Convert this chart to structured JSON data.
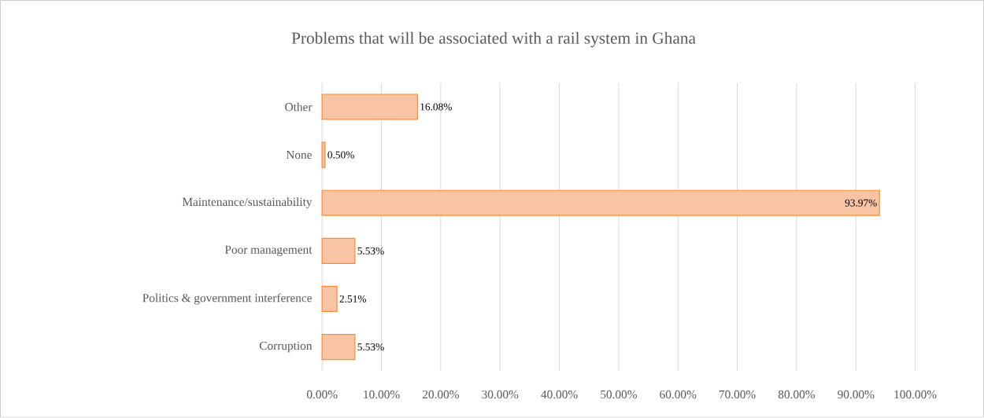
{
  "chart_data": {
    "type": "bar",
    "orientation": "horizontal",
    "title": "Problems that will be associated with a rail system in Ghana",
    "categories": [
      "Other",
      "None",
      "Maintenance/sustainability",
      "Poor management",
      "Politics & government interference",
      "Corruption"
    ],
    "values": [
      16.08,
      0.5,
      93.97,
      5.53,
      2.51,
      5.53
    ],
    "value_labels": [
      "16.08%",
      "0.50%",
      "93.97%",
      "5.53%",
      "2.51%",
      "5.53%"
    ],
    "color": "#f8c4a4",
    "xlim": [
      0,
      100
    ],
    "xticks": [
      {
        "value": 0,
        "label": "0.00%"
      },
      {
        "value": 10,
        "label": "10.00%"
      },
      {
        "value": 20,
        "label": "20.00%"
      },
      {
        "value": 30,
        "label": "30.00%"
      },
      {
        "value": 40,
        "label": "40.00%"
      },
      {
        "value": 50,
        "label": "50.00%"
      },
      {
        "value": 60,
        "label": "60.00%"
      },
      {
        "value": 70,
        "label": "70.00%"
      },
      {
        "value": 80,
        "label": "80.00%"
      },
      {
        "value": 90,
        "label": "90.00%"
      },
      {
        "value": 100,
        "label": "100.00%"
      }
    ],
    "grid": "x"
  }
}
